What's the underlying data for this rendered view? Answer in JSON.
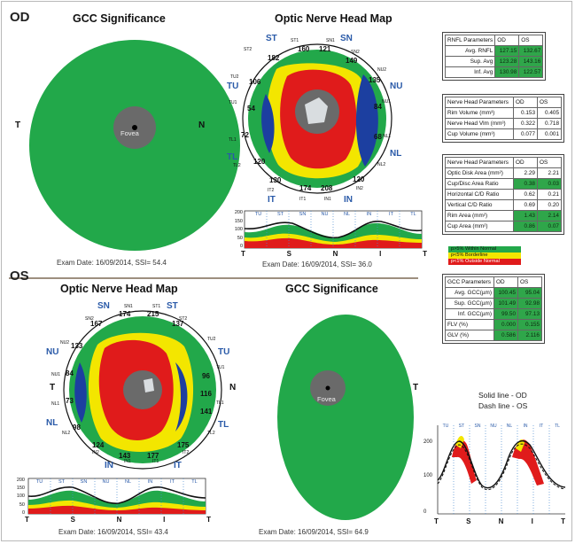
{
  "od": {
    "eye_label": "OD",
    "gcc_title": "GCC Significance",
    "onh_title": "Optic Nerve Head Map",
    "gcc_side_left": "T",
    "gcc_side_right": "N",
    "fovea_label": "Fovea",
    "exam_gcc": "Exam Date: 16/09/2014, SSI= 54.4",
    "exam_onh": "Exam Date: 16/09/2014, SSI= 36.0",
    "sector_labels": {
      "st": "ST",
      "sn": "SN",
      "tu": "TU",
      "nu": "NU",
      "tl": "TL",
      "nl": "NL",
      "it": "IT",
      "in": "IN"
    },
    "ring_labels": {
      "st2": "ST2",
      "st1": "ST1",
      "sn1": "SN1",
      "sn2": "SN2",
      "tu2": "TU2",
      "tu1": "TU1",
      "nu2": "NU2",
      "nu1": "NU1",
      "tl1": "TL1",
      "tl2": "TL2",
      "nl1": "NL1",
      "nl2": "NL2",
      "it2": "IT2",
      "it1": "IT1",
      "in1": "IN1",
      "in2": "IN2"
    },
    "ring_values": {
      "v160": "160",
      "v121": "121",
      "v182": "182",
      "v149": "149",
      "v106": "106",
      "v135": "135",
      "v54": "54",
      "v84": "84",
      "v72": "72",
      "v68": "68",
      "v120": "120",
      "v130": "130",
      "v174": "174",
      "v208": "208",
      "v120b": "120"
    },
    "profile_sectors": [
      "TU",
      "ST",
      "SN",
      "NU",
      "NL",
      "IN",
      "IT",
      "TL"
    ],
    "profile_axis": [
      "T",
      "S",
      "N",
      "I",
      "T"
    ],
    "profile_yticks": [
      "200",
      "150",
      "100",
      "50",
      "0"
    ]
  },
  "os": {
    "eye_label": "OS",
    "onh_title": "Optic Nerve Head Map",
    "gcc_title": "GCC Significance",
    "onh_side_left": "T",
    "onh_side_right": "N",
    "gcc_side_right": "T",
    "fovea_label": "Fovea",
    "exam_onh": "Exam Date: 16/09/2014, SSI= 43.4",
    "exam_gcc": "Exam Date: 16/09/2014, SSI= 64.9",
    "sector_labels": {
      "sn": "SN",
      "st": "ST",
      "nu": "NU",
      "tu": "TU",
      "nl": "NL",
      "tl": "TL",
      "in": "IN",
      "it": "IT"
    },
    "ring_labels": {
      "sn1": "SN1",
      "st1": "ST1",
      "sn2": "SN2",
      "st2": "ST2",
      "nu2": "NU2",
      "tu2": "TU2",
      "nu1": "NU1",
      "tu1": "TU1",
      "nl1": "NL1",
      "tl1": "TL1",
      "nl2": "NL2",
      "tl2": "TL2",
      "in2": "IN2",
      "in1": "IN1",
      "it1": "IT1",
      "it2": "IT2"
    },
    "ring_values": {
      "v174": "174",
      "v215": "215",
      "v167": "167",
      "v137": "137",
      "v133": "133",
      "v84": "84",
      "v96": "96",
      "v141": "141",
      "v116": "116",
      "v73": "73",
      "v98": "98",
      "v124": "124",
      "v143": "143",
      "v177": "177",
      "v175": "175"
    },
    "profile_sectors": [
      "TU",
      "ST",
      "SN",
      "NU",
      "NL",
      "IN",
      "IT",
      "TL"
    ],
    "profile_axis": [
      "T",
      "S",
      "N",
      "I",
      "T"
    ],
    "profile_yticks": [
      "200",
      "150",
      "100",
      "50",
      "0"
    ]
  },
  "rnfl_table": {
    "header": [
      "RNFL Parameters",
      "OD",
      "OS"
    ],
    "rows": [
      [
        "Avg. RNFL",
        "127.15",
        "132.67"
      ],
      [
        "Sup. Avg",
        "123.28",
        "143.16"
      ],
      [
        "Inf. Avg",
        "130.98",
        "122.57"
      ]
    ]
  },
  "nh_table_1": {
    "header": [
      "Nerve Head Parameters",
      "OD",
      "OS"
    ],
    "rows": [
      [
        "Rim Volume (mm³)",
        "0.153",
        "0.405"
      ],
      [
        "Nerve Head Vlm (mm³)",
        "0.322",
        "0.718"
      ],
      [
        "Cup Volume (mm³)",
        "0.077",
        "0.001"
      ]
    ]
  },
  "nh_table_2": {
    "header": [
      "Nerve Head Parameters",
      "OD",
      "OS"
    ],
    "rows": [
      [
        "Optic Disk Area (mm²)",
        "2.29",
        "2.21"
      ],
      [
        "Cup/Disc Area Ratio",
        "0.38",
        "0.03"
      ],
      [
        "Horizontal C/D Ratio",
        "0.62",
        "0.21"
      ],
      [
        "Vertical C/D Ratio",
        "0.69",
        "0.20"
      ],
      [
        "Rim Area (mm²)",
        "1.43",
        "2.14"
      ],
      [
        "Cup Area (mm²)",
        "0.86",
        "0.07"
      ]
    ]
  },
  "legend": {
    "within": "p>5% Within Normal",
    "borderline": "p<5% Borderline",
    "outside": "p<1% Outside Normal"
  },
  "gcc_table": {
    "header": [
      "GCC Parameters",
      "OD",
      "OS"
    ],
    "rows": [
      [
        "Avg. GCC(µm)",
        "100.45",
        "95.04"
      ],
      [
        "Sup. GCC(µm)",
        "101.49",
        "92.98"
      ],
      [
        "Inf. GCC(µm)",
        "99.50",
        "97.13"
      ],
      [
        "FLV (%)",
        "0.000",
        "0.155"
      ],
      [
        "GLV (%)",
        "0.586",
        "2.116"
      ]
    ]
  },
  "comparison": {
    "solid_label": "Solid line - OD",
    "dash_label": "Dash line - OS",
    "sectors": [
      "TU",
      "ST",
      "SN",
      "NU",
      "NL",
      "IN",
      "IT",
      "TL"
    ],
    "axis": [
      "T",
      "S",
      "N",
      "I",
      "T"
    ],
    "yticks": [
      "200",
      "100",
      "0"
    ]
  },
  "colors": {
    "normal": "#22a84a",
    "borderline": "#f3e600",
    "outside": "#e01b1b",
    "thin_blue": "#1c3fa0",
    "fovea_gray": "#6a6a6a"
  }
}
